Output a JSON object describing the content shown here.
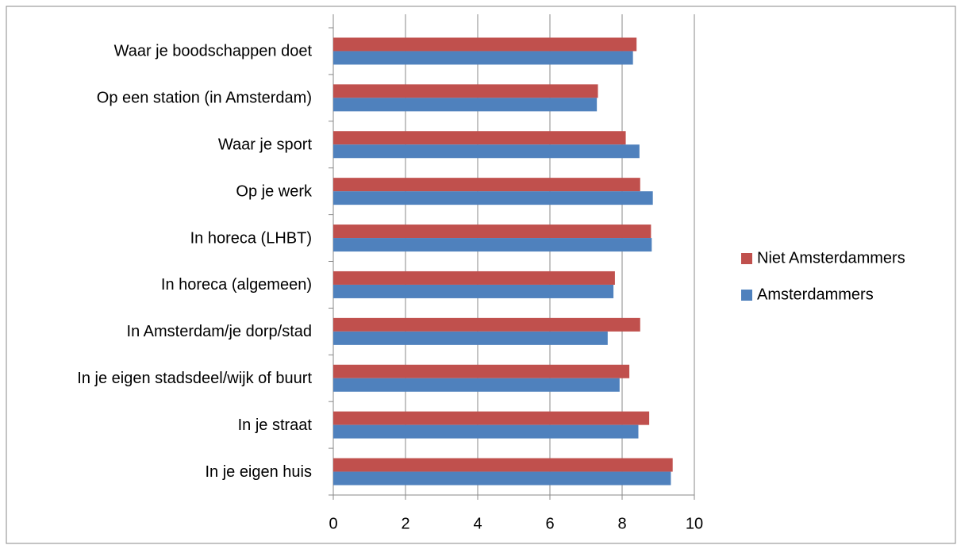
{
  "chart_data": {
    "type": "bar",
    "orientation": "horizontal",
    "categories": [
      "Waar je boodschappen doet",
      "Op een station (in Amsterdam)",
      "Waar je sport",
      "Op je werk",
      "In horeca (LHBT)",
      "In horeca (algemeen)",
      "In Amsterdam/je dorp/stad",
      "In je eigen stadsdeel/wijk of buurt",
      "In je straat",
      "In je eigen huis"
    ],
    "series": [
      {
        "name": "Niet Amsterdammers",
        "color": "#c0504d",
        "values": [
          8.4,
          7.33,
          8.1,
          8.5,
          8.8,
          7.8,
          8.5,
          8.2,
          8.75,
          9.4
        ]
      },
      {
        "name": "Amsterdammers",
        "color": "#4f81bd",
        "values": [
          8.3,
          7.3,
          8.48,
          8.85,
          8.82,
          7.76,
          7.6,
          7.93,
          8.45,
          9.35
        ]
      }
    ],
    "xlim": [
      0,
      10
    ],
    "xticks": [
      0,
      2,
      4,
      6,
      8,
      10
    ],
    "grid": true,
    "legend": "right"
  }
}
